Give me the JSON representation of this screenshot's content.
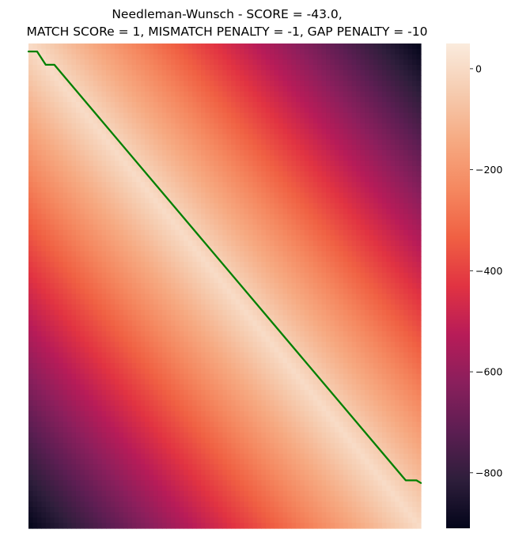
{
  "chart_data": {
    "type": "heatmap",
    "title_lines": [
      "Needleman-Wunsch - SCORE = -43.0,",
      "MATCH SCORe = 1, MISMATCH PENALTY = -1, GAP PENALTY = -10"
    ],
    "xlabel": "",
    "ylabel": "",
    "grid": false,
    "rows": 91,
    "cols": 91,
    "cell_value_model": "score at (row, col) ≈ -10 × |row - col| (upper-left to lower-right diagonal ≈ 0)",
    "colorbar": {
      "min": -910,
      "max": 50,
      "ticks": [
        0,
        -200,
        -400,
        -600,
        -800
      ],
      "tick_labels": [
        "0",
        "−200",
        "−400",
        "−600",
        "−800"
      ],
      "colormap": "rocket",
      "position": "right"
    },
    "path": {
      "color": "#008000",
      "points": [
        [
          0,
          1.5
        ],
        [
          2,
          1.5
        ],
        [
          4,
          4
        ],
        [
          6,
          4
        ],
        [
          87.5,
          82
        ],
        [
          90,
          82
        ],
        [
          91,
          82.5
        ]
      ]
    }
  }
}
